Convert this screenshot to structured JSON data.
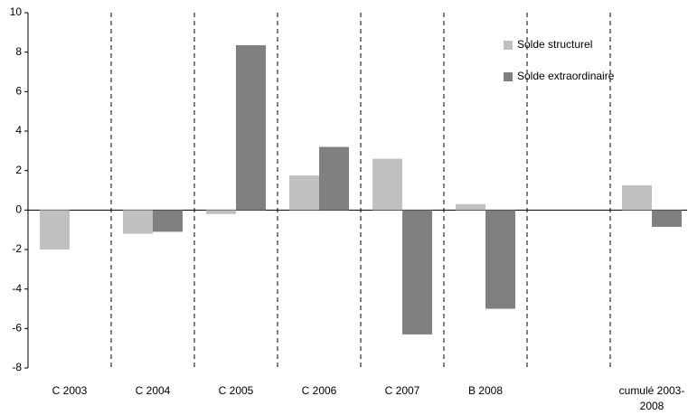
{
  "chart_data": {
    "type": "bar",
    "categories": [
      "C 2003",
      "C 2004",
      "C 2005",
      "C 2006",
      "C 2007",
      "B 2008",
      null,
      "cumulé 2003-2008"
    ],
    "series": [
      {
        "name": "Solde structurel",
        "color": "#c0c0c0",
        "values": [
          -2.0,
          -1.2,
          -0.2,
          1.75,
          2.6,
          0.3,
          null,
          1.25
        ]
      },
      {
        "name": "Solde extraordinaire",
        "color": "#808080",
        "values": [
          null,
          -1.1,
          8.35,
          3.2,
          -6.3,
          -5.0,
          null,
          -0.85
        ]
      }
    ],
    "ylim": [
      -8,
      10
    ],
    "yticks": [
      -8,
      -6,
      -4,
      -2,
      0,
      2,
      4,
      6,
      8,
      10
    ],
    "grid": false,
    "legend": "top-right"
  }
}
